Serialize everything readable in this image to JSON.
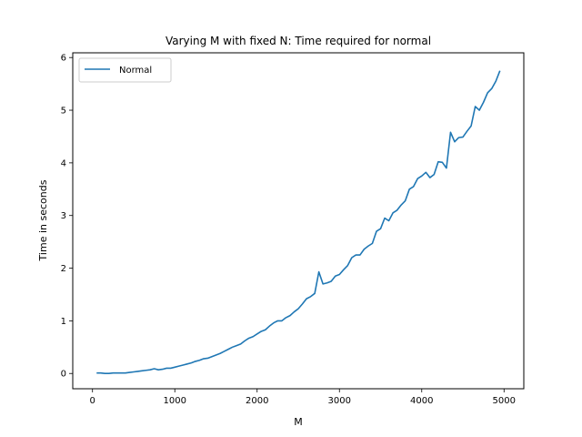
{
  "chart_data": {
    "type": "line",
    "title": "Varying M with fixed N: Time required for normal",
    "xlabel": "M",
    "ylabel": "Time in seconds",
    "xlim": [
      -240,
      5240
    ],
    "ylim": [
      -0.29,
      6.09
    ],
    "xticks": [
      0,
      1000,
      2000,
      3000,
      4000,
      5000
    ],
    "yticks": [
      0,
      1,
      2,
      3,
      4,
      5,
      6
    ],
    "grid": false,
    "legend": {
      "placement": "top-left",
      "entries": [
        "Normal"
      ]
    },
    "colors": {
      "series": "#1f77b4"
    },
    "series": [
      {
        "name": "Normal",
        "x": [
          50,
          100,
          150,
          200,
          250,
          300,
          350,
          400,
          450,
          500,
          550,
          600,
          650,
          700,
          750,
          800,
          850,
          900,
          950,
          1000,
          1050,
          1100,
          1150,
          1200,
          1250,
          1300,
          1350,
          1400,
          1450,
          1500,
          1550,
          1600,
          1650,
          1700,
          1750,
          1800,
          1850,
          1900,
          1950,
          2000,
          2050,
          2100,
          2150,
          2200,
          2250,
          2300,
          2350,
          2400,
          2450,
          2500,
          2550,
          2600,
          2650,
          2700,
          2750,
          2800,
          2850,
          2900,
          2950,
          3000,
          3050,
          3100,
          3150,
          3200,
          3250,
          3300,
          3350,
          3400,
          3450,
          3500,
          3550,
          3600,
          3650,
          3700,
          3750,
          3800,
          3850,
          3900,
          3950,
          4000,
          4050,
          4100,
          4150,
          4200,
          4250,
          4300,
          4350,
          4400,
          4450,
          4500,
          4550,
          4600,
          4650,
          4700,
          4750,
          4800,
          4850,
          4900,
          4950
        ],
        "values": [
          0.01,
          0.01,
          0.0,
          0.0,
          0.01,
          0.01,
          0.01,
          0.01,
          0.02,
          0.03,
          0.04,
          0.05,
          0.06,
          0.07,
          0.09,
          0.07,
          0.08,
          0.1,
          0.1,
          0.12,
          0.14,
          0.16,
          0.18,
          0.2,
          0.23,
          0.25,
          0.28,
          0.29,
          0.32,
          0.35,
          0.38,
          0.42,
          0.46,
          0.5,
          0.53,
          0.56,
          0.62,
          0.67,
          0.7,
          0.75,
          0.8,
          0.83,
          0.9,
          0.96,
          1.0,
          1.0,
          1.06,
          1.1,
          1.17,
          1.23,
          1.32,
          1.42,
          1.46,
          1.52,
          1.93,
          1.7,
          1.72,
          1.75,
          1.85,
          1.88,
          1.97,
          2.05,
          2.2,
          2.25,
          2.25,
          2.36,
          2.42,
          2.47,
          2.7,
          2.75,
          2.95,
          2.9,
          3.05,
          3.1,
          3.2,
          3.28,
          3.5,
          3.55,
          3.7,
          3.75,
          3.82,
          3.72,
          3.78,
          4.02,
          4.01,
          3.9,
          4.58,
          4.4,
          4.48,
          4.49,
          4.6,
          4.7,
          5.07,
          5.0,
          5.15,
          5.33,
          5.41,
          5.55,
          5.75
        ]
      }
    ]
  }
}
